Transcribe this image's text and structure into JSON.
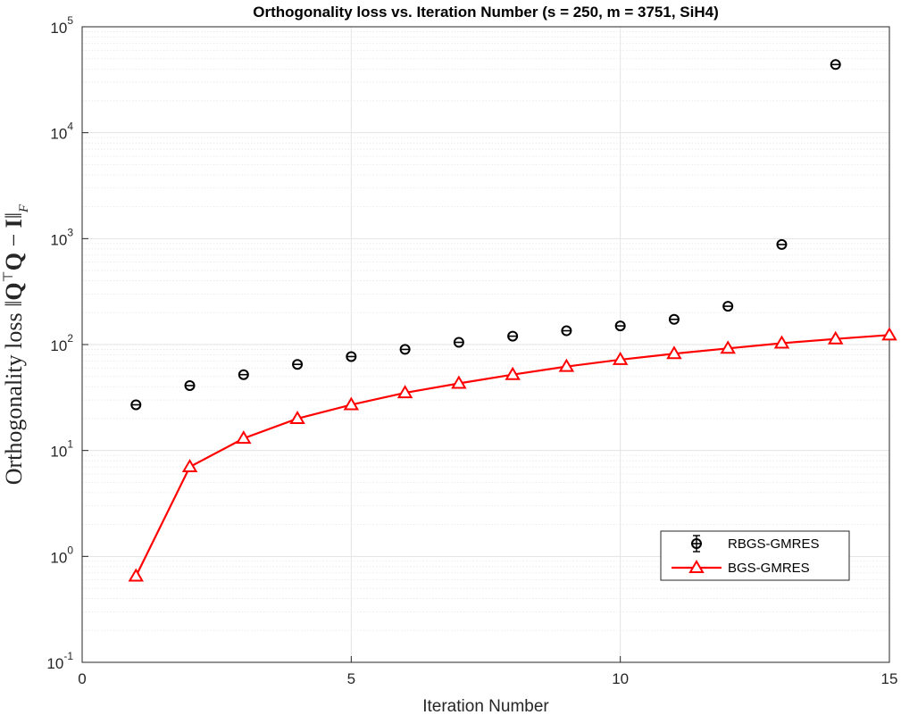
{
  "chart_data": {
    "type": "scatter",
    "title": "Orthogonality loss vs. Iteration Number (s = 250, m = 3751, SiH4)",
    "xlabel": "Iteration Number",
    "ylabel_prefix": "Orthogonality loss",
    "ylabel_norm_open": "‖",
    "ylabel_Q": "Q",
    "ylabel_transpose": "⊤",
    "ylabel_Q2": "Q",
    "ylabel_minus": " − ",
    "ylabel_I": "I",
    "ylabel_norm_close": "‖",
    "ylabel_sub": "F",
    "yscale": "log",
    "xlim": [
      0,
      15
    ],
    "ylim": [
      0.1,
      100000
    ],
    "grid": true,
    "legend_position": "lower-right",
    "x_ticks": [
      "0",
      "5",
      "10",
      "15"
    ],
    "x_tick_values": [
      0,
      5,
      10,
      15
    ],
    "y_ticks": [
      {
        "base": "10",
        "exp": "-1",
        "value": 0.1
      },
      {
        "base": "10",
        "exp": "0",
        "value": 1
      },
      {
        "base": "10",
        "exp": "1",
        "value": 10
      },
      {
        "base": "10",
        "exp": "2",
        "value": 100
      },
      {
        "base": "10",
        "exp": "3",
        "value": 1000
      },
      {
        "base": "10",
        "exp": "4",
        "value": 10000
      },
      {
        "base": "10",
        "exp": "5",
        "value": 100000
      }
    ],
    "series": [
      {
        "name": "RBGS-GMRES",
        "color": "#000000",
        "marker": "circle",
        "line": false,
        "x": [
          1,
          2,
          3,
          4,
          5,
          6,
          7,
          8,
          9,
          10,
          11,
          12,
          13,
          14
        ],
        "y": [
          27,
          41,
          52,
          65,
          77,
          90,
          105,
          120,
          135,
          150,
          173,
          230,
          880,
          44000
        ]
      },
      {
        "name": "BGS-GMRES",
        "color": "#ff0000",
        "marker": "triangle",
        "line": true,
        "x": [
          1,
          2,
          3,
          4,
          5,
          6,
          7,
          8,
          9,
          10,
          11,
          12,
          13,
          14,
          15
        ],
        "y": [
          0.65,
          7,
          13,
          20,
          27,
          35,
          43,
          52,
          62,
          72,
          82,
          92,
          103,
          113,
          123
        ]
      }
    ]
  }
}
